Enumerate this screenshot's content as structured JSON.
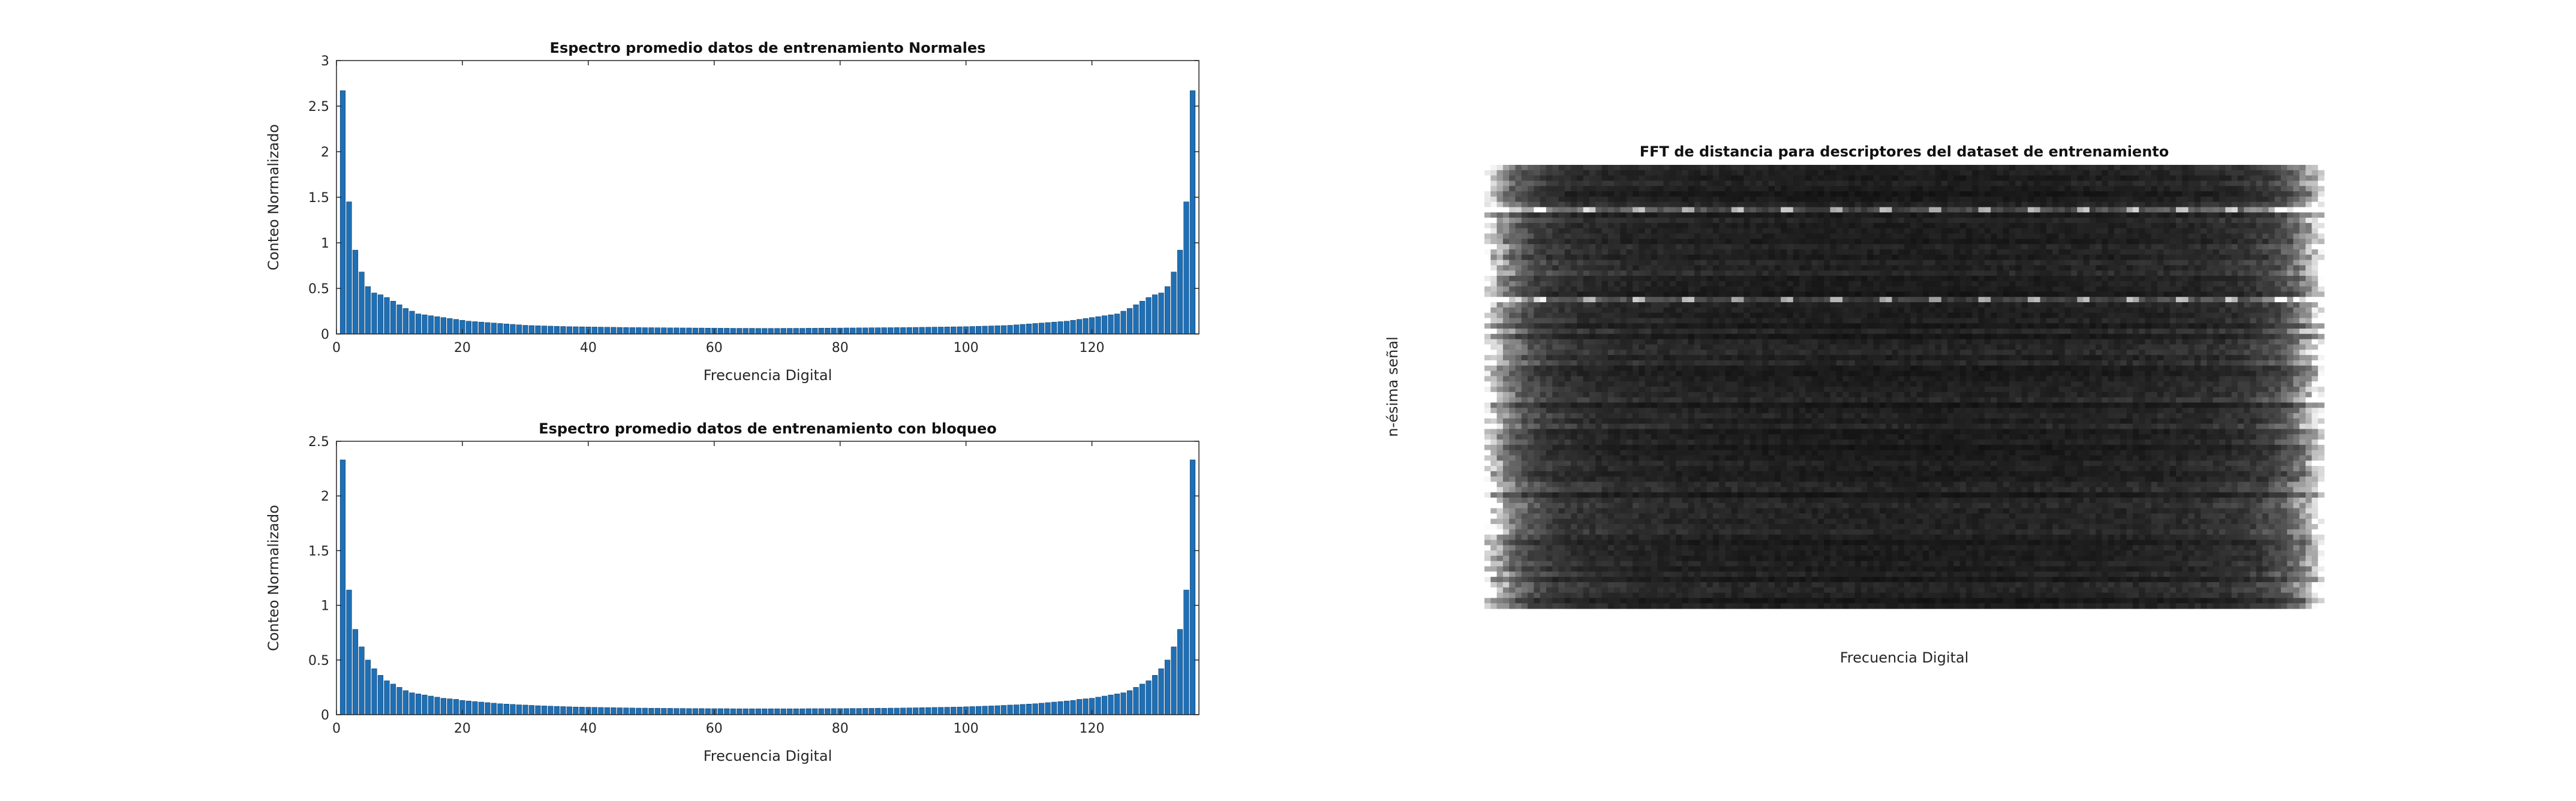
{
  "chart_data": [
    {
      "type": "bar",
      "title": "Espectro promedio datos de entrenamiento Normales",
      "xlabel": "Frecuencia Digital",
      "ylabel": "Conteo Normalizado",
      "xlim": [
        0,
        137
      ],
      "ylim": [
        0,
        3
      ],
      "xticks": [
        "0",
        "20",
        "40",
        "60",
        "80",
        "100",
        "120"
      ],
      "yticks": [
        "0",
        "0.5",
        "1",
        "1.5",
        "2",
        "2.5",
        "3"
      ],
      "bar_color": "#1f6fb5",
      "x": [
        1,
        2,
        3,
        4,
        5,
        6,
        7,
        8,
        9,
        10,
        11,
        12,
        13,
        14,
        15,
        16,
        17,
        18,
        19,
        20,
        21,
        22,
        23,
        24,
        25,
        26,
        27,
        28,
        29,
        30,
        31,
        32,
        33,
        34,
        35,
        36,
        37,
        38,
        39,
        40,
        41,
        42,
        43,
        44,
        45,
        46,
        47,
        48,
        49,
        50,
        51,
        52,
        53,
        54,
        55,
        56,
        57,
        58,
        59,
        60,
        61,
        62,
        63,
        64,
        65,
        66,
        67,
        68,
        69,
        70,
        71,
        72,
        73,
        74,
        75,
        76,
        77,
        78,
        79,
        80,
        81,
        82,
        83,
        84,
        85,
        86,
        87,
        88,
        89,
        90,
        91,
        92,
        93,
        94,
        95,
        96,
        97,
        98,
        99,
        100,
        101,
        102,
        103,
        104,
        105,
        106,
        107,
        108,
        109,
        110,
        111,
        112,
        113,
        114,
        115,
        116,
        117,
        118,
        119,
        120,
        121,
        122,
        123,
        124,
        125,
        126,
        127,
        128,
        129,
        130,
        131,
        132,
        133,
        134,
        135,
        136
      ],
      "values": [
        2.67,
        1.45,
        0.92,
        0.68,
        0.52,
        0.45,
        0.43,
        0.4,
        0.36,
        0.32,
        0.28,
        0.25,
        0.22,
        0.21,
        0.2,
        0.19,
        0.18,
        0.17,
        0.16,
        0.15,
        0.14,
        0.135,
        0.13,
        0.125,
        0.12,
        0.115,
        0.11,
        0.105,
        0.1,
        0.095,
        0.092,
        0.09,
        0.088,
        0.086,
        0.084,
        0.082,
        0.08,
        0.079,
        0.078,
        0.077,
        0.076,
        0.075,
        0.074,
        0.073,
        0.072,
        0.071,
        0.07,
        0.07,
        0.069,
        0.069,
        0.068,
        0.068,
        0.067,
        0.067,
        0.066,
        0.066,
        0.065,
        0.065,
        0.064,
        0.064,
        0.063,
        0.063,
        0.062,
        0.062,
        0.062,
        0.062,
        0.061,
        0.061,
        0.061,
        0.061,
        0.062,
        0.062,
        0.062,
        0.062,
        0.063,
        0.063,
        0.064,
        0.064,
        0.065,
        0.065,
        0.066,
        0.066,
        0.067,
        0.067,
        0.068,
        0.068,
        0.069,
        0.069,
        0.07,
        0.07,
        0.071,
        0.072,
        0.073,
        0.074,
        0.075,
        0.076,
        0.077,
        0.078,
        0.079,
        0.08,
        0.082,
        0.084,
        0.086,
        0.088,
        0.09,
        0.092,
        0.095,
        0.1,
        0.105,
        0.11,
        0.115,
        0.12,
        0.125,
        0.13,
        0.135,
        0.14,
        0.15,
        0.16,
        0.17,
        0.18,
        0.19,
        0.2,
        0.21,
        0.22,
        0.25,
        0.28,
        0.32,
        0.36,
        0.4,
        0.43,
        0.45,
        0.52,
        0.68,
        0.92,
        1.45,
        2.67
      ]
    },
    {
      "type": "bar",
      "title": "Espectro promedio datos de entrenamiento con bloqueo",
      "xlabel": "Frecuencia Digital",
      "ylabel": "Conteo Normalizado",
      "xlim": [
        0,
        137
      ],
      "ylim": [
        0,
        2.5
      ],
      "xticks": [
        "0",
        "20",
        "40",
        "60",
        "80",
        "100",
        "120"
      ],
      "yticks": [
        "0",
        "0.5",
        "1",
        "1.5",
        "2",
        "2.5"
      ],
      "bar_color": "#1f6fb5",
      "x": [
        1,
        2,
        3,
        4,
        5,
        6,
        7,
        8,
        9,
        10,
        11,
        12,
        13,
        14,
        15,
        16,
        17,
        18,
        19,
        20,
        21,
        22,
        23,
        24,
        25,
        26,
        27,
        28,
        29,
        30,
        31,
        32,
        33,
        34,
        35,
        36,
        37,
        38,
        39,
        40,
        41,
        42,
        43,
        44,
        45,
        46,
        47,
        48,
        49,
        50,
        51,
        52,
        53,
        54,
        55,
        56,
        57,
        58,
        59,
        60,
        61,
        62,
        63,
        64,
        65,
        66,
        67,
        68,
        69,
        70,
        71,
        72,
        73,
        74,
        75,
        76,
        77,
        78,
        79,
        80,
        81,
        82,
        83,
        84,
        85,
        86,
        87,
        88,
        89,
        90,
        91,
        92,
        93,
        94,
        95,
        96,
        97,
        98,
        99,
        100,
        101,
        102,
        103,
        104,
        105,
        106,
        107,
        108,
        109,
        110,
        111,
        112,
        113,
        114,
        115,
        116,
        117,
        118,
        119,
        120,
        121,
        122,
        123,
        124,
        125,
        126,
        127,
        128,
        129,
        130,
        131,
        132,
        133,
        134,
        135,
        136
      ],
      "values": [
        2.33,
        1.14,
        0.78,
        0.62,
        0.5,
        0.42,
        0.36,
        0.31,
        0.28,
        0.25,
        0.22,
        0.2,
        0.19,
        0.18,
        0.17,
        0.16,
        0.15,
        0.145,
        0.14,
        0.13,
        0.125,
        0.12,
        0.115,
        0.11,
        0.105,
        0.1,
        0.097,
        0.094,
        0.09,
        0.088,
        0.085,
        0.082,
        0.08,
        0.078,
        0.076,
        0.074,
        0.072,
        0.07,
        0.069,
        0.068,
        0.067,
        0.066,
        0.065,
        0.064,
        0.063,
        0.062,
        0.061,
        0.06,
        0.06,
        0.059,
        0.059,
        0.058,
        0.058,
        0.057,
        0.057,
        0.056,
        0.056,
        0.056,
        0.055,
        0.055,
        0.055,
        0.055,
        0.054,
        0.054,
        0.054,
        0.054,
        0.054,
        0.054,
        0.054,
        0.054,
        0.054,
        0.054,
        0.054,
        0.054,
        0.055,
        0.055,
        0.055,
        0.055,
        0.056,
        0.056,
        0.056,
        0.057,
        0.057,
        0.058,
        0.058,
        0.059,
        0.059,
        0.06,
        0.06,
        0.061,
        0.062,
        0.063,
        0.064,
        0.065,
        0.066,
        0.067,
        0.068,
        0.069,
        0.07,
        0.072,
        0.074,
        0.076,
        0.078,
        0.08,
        0.082,
        0.085,
        0.088,
        0.09,
        0.094,
        0.097,
        0.1,
        0.105,
        0.11,
        0.115,
        0.12,
        0.125,
        0.13,
        0.14,
        0.145,
        0.15,
        0.16,
        0.17,
        0.18,
        0.19,
        0.2,
        0.22,
        0.25,
        0.28,
        0.31,
        0.36,
        0.42,
        0.5,
        0.62,
        0.78,
        1.14,
        2.33
      ]
    },
    {
      "type": "heatmap",
      "title": "FFT de distancia para descriptores del dataset de entrenamiento",
      "xlabel": "Frecuencia Digital",
      "ylabel": "n-ésima señal",
      "colormap": "gray",
      "columns": 136,
      "rows": 84,
      "column_profile": "bright at both edge columns (low/high digital frequency), near-black in the middle",
      "bright_rows": [
        8,
        25
      ],
      "axes_visible": false
    }
  ]
}
